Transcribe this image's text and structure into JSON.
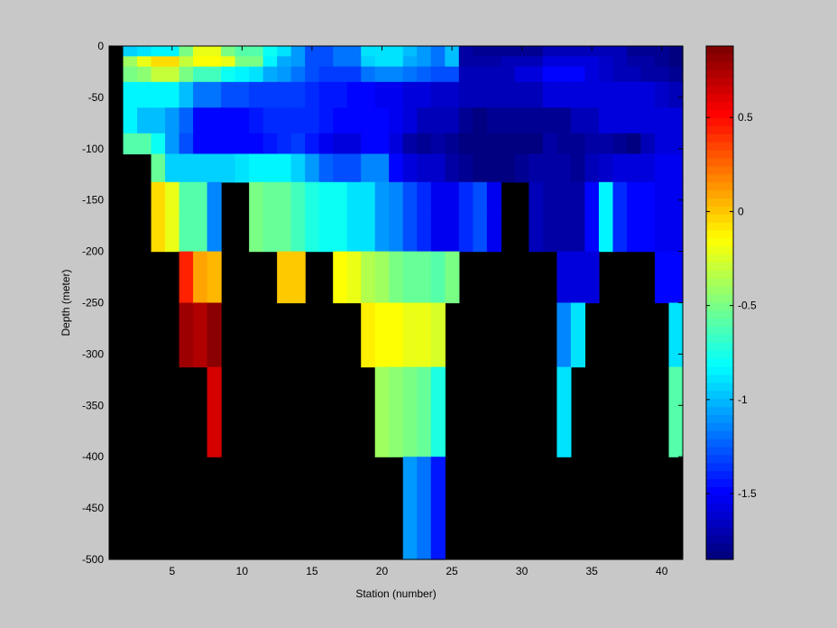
{
  "chart_data": {
    "type": "heatmap",
    "xlabel": "Station (number)",
    "ylabel": "Depth (meter)",
    "xlim": [
      1.5,
      42.5
    ],
    "ylim": [
      -500,
      0
    ],
    "xticks": [
      5,
      10,
      15,
      20,
      25,
      30,
      35,
      40
    ],
    "yticks": [
      0,
      -50,
      -100,
      -150,
      -200,
      -250,
      -300,
      -350,
      -400,
      -450,
      -500
    ],
    "x_label_offset": 1,
    "colorbar": {
      "range": [
        -1.85,
        0.88
      ],
      "ticks": [
        0.5,
        0,
        -0.5,
        -1,
        -1.5
      ],
      "colormap": "jet-like"
    },
    "missing_color": "#000000",
    "stations": [
      2,
      3,
      4,
      5,
      6,
      7,
      8,
      9,
      10,
      11,
      12,
      13,
      14,
      15,
      16,
      17,
      18,
      19,
      20,
      21,
      22,
      23,
      24,
      25,
      26,
      27,
      28,
      29,
      30,
      31,
      32,
      33,
      34,
      35,
      36,
      37,
      38,
      39,
      40,
      41
    ],
    "depths": [
      -5,
      -15,
      -25,
      -45,
      -75,
      -95,
      -115,
      -150,
      -175,
      -225,
      -275,
      -350,
      -450
    ],
    "values": [
      [
        -0.95,
        -0.9,
        -0.85,
        -0.85,
        -0.5,
        -0.2,
        -0.2,
        -0.5,
        -0.6,
        -0.6,
        -0.8,
        -0.9,
        -1.1,
        -1.3,
        -1.3,
        -1.2,
        -1.2,
        -0.9,
        -0.9,
        -0.9,
        -1.0,
        -1.1,
        -1.2,
        -1.0,
        -1.75,
        -1.8,
        -1.8,
        -1.8,
        -1.8,
        -1.8,
        -1.7,
        -1.7,
        -1.7,
        -1.7,
        -1.7,
        -1.7,
        -1.8,
        -1.8,
        -1.8,
        -1.85
      ],
      [
        -0.4,
        -0.2,
        -0.05,
        -0.05,
        -0.3,
        -0.15,
        -0.15,
        -0.2,
        -0.5,
        -0.5,
        -0.85,
        -1.05,
        -1.1,
        -1.3,
        -1.3,
        -1.2,
        -1.2,
        -0.95,
        -0.9,
        -0.9,
        -1.05,
        -1.1,
        -1.2,
        -1.0,
        -1.75,
        -1.75,
        -1.75,
        -1.7,
        -1.7,
        -1.7,
        -1.6,
        -1.6,
        -1.6,
        -1.6,
        -1.65,
        -1.7,
        -1.75,
        -1.75,
        -1.8,
        -1.85
      ],
      [
        -0.5,
        -0.45,
        -0.3,
        -0.3,
        -0.5,
        -0.65,
        -0.65,
        -0.8,
        -0.85,
        -0.9,
        -1.05,
        -1.1,
        -1.2,
        -1.3,
        -1.35,
        -1.35,
        -1.35,
        -1.2,
        -1.15,
        -1.15,
        -1.2,
        -1.25,
        -1.3,
        -1.3,
        -1.7,
        -1.7,
        -1.7,
        -1.7,
        -1.6,
        -1.6,
        -1.5,
        -1.5,
        -1.5,
        -1.6,
        -1.65,
        -1.7,
        -1.7,
        -1.75,
        -1.75,
        -1.8
      ],
      [
        -0.85,
        -0.85,
        -0.85,
        -0.85,
        -1.0,
        -1.2,
        -1.2,
        -1.3,
        -1.3,
        -1.35,
        -1.35,
        -1.35,
        -1.35,
        -1.4,
        -1.45,
        -1.45,
        -1.5,
        -1.5,
        -1.55,
        -1.55,
        -1.6,
        -1.6,
        -1.65,
        -1.65,
        -1.7,
        -1.7,
        -1.7,
        -1.7,
        -1.7,
        -1.7,
        -1.6,
        -1.6,
        -1.6,
        -1.6,
        -1.6,
        -1.6,
        -1.6,
        -1.6,
        -1.65,
        -1.7
      ],
      [
        -0.85,
        -1.0,
        -1.0,
        -1.1,
        -1.25,
        -1.5,
        -1.5,
        -1.5,
        -1.5,
        -1.45,
        -1.4,
        -1.4,
        -1.4,
        -1.4,
        -1.45,
        -1.5,
        -1.5,
        -1.5,
        -1.5,
        -1.55,
        -1.6,
        -1.7,
        -1.7,
        -1.7,
        -1.8,
        -1.85,
        -1.8,
        -1.8,
        -1.8,
        -1.8,
        -1.8,
        -1.8,
        -1.7,
        -1.7,
        -1.6,
        -1.6,
        -1.6,
        -1.6,
        -1.6,
        -1.6
      ],
      [
        -0.6,
        -0.6,
        -0.8,
        -1.1,
        -1.3,
        -1.5,
        -1.5,
        -1.5,
        -1.5,
        -1.5,
        -1.45,
        -1.4,
        -1.35,
        -1.45,
        -1.55,
        -1.6,
        -1.6,
        -1.5,
        -1.5,
        -1.6,
        -1.75,
        -1.8,
        -1.75,
        -1.8,
        -1.85,
        -1.85,
        -1.85,
        -1.85,
        -1.85,
        -1.85,
        -1.75,
        -1.8,
        -1.8,
        -1.75,
        -1.75,
        -1.8,
        -1.85,
        -1.7,
        -1.6,
        -1.6
      ],
      [
        null,
        null,
        -0.55,
        -0.95,
        -0.95,
        -0.95,
        -0.95,
        -0.95,
        -0.9,
        -0.85,
        -0.85,
        -0.85,
        -0.95,
        -1.1,
        -1.25,
        -1.3,
        -1.3,
        -1.15,
        -1.15,
        -1.5,
        -1.6,
        -1.65,
        -1.65,
        -1.75,
        -1.8,
        -1.85,
        -1.85,
        -1.85,
        -1.8,
        -1.75,
        -1.75,
        -1.75,
        -1.8,
        -1.7,
        -1.65,
        -1.6,
        -1.6,
        -1.6,
        -1.55,
        -1.55
      ],
      [
        null,
        null,
        -0.05,
        -0.2,
        -0.6,
        -0.6,
        -1.15,
        null,
        null,
        -0.5,
        -0.55,
        -0.55,
        -0.65,
        -0.75,
        -0.8,
        -0.8,
        -0.9,
        -0.9,
        -1.1,
        -1.15,
        -1.3,
        -1.4,
        -1.55,
        -1.55,
        -1.4,
        -1.3,
        -1.55,
        null,
        null,
        -1.7,
        -1.75,
        -1.75,
        -1.75,
        -1.5,
        -0.85,
        -1.4,
        -1.5,
        -1.5,
        -1.55,
        -1.55
      ],
      [
        null,
        null,
        -0.05,
        -0.2,
        -0.6,
        -0.6,
        -1.15,
        null,
        null,
        -0.5,
        -0.55,
        -0.55,
        -0.65,
        -0.75,
        -0.8,
        -0.8,
        -0.9,
        -0.9,
        -1.1,
        -1.15,
        -1.3,
        -1.4,
        -1.55,
        -1.55,
        -1.4,
        -1.3,
        -1.55,
        null,
        null,
        -1.7,
        -1.75,
        -1.75,
        -1.75,
        -1.5,
        -0.85,
        -1.4,
        -1.5,
        -1.5,
        -1.55,
        -1.55
      ],
      [
        null,
        null,
        null,
        null,
        0.45,
        0.1,
        0.05,
        null,
        null,
        null,
        null,
        0.0,
        0.0,
        null,
        null,
        -0.15,
        -0.2,
        -0.35,
        -0.4,
        -0.5,
        -0.55,
        -0.55,
        -0.6,
        -0.5,
        null,
        null,
        null,
        null,
        null,
        null,
        null,
        -1.6,
        -1.6,
        -1.6,
        null,
        null,
        null,
        null,
        -1.5,
        -1.5
      ],
      [
        null,
        null,
        null,
        null,
        0.8,
        0.75,
        0.85,
        null,
        null,
        null,
        null,
        null,
        null,
        null,
        null,
        null,
        null,
        -0.1,
        -0.15,
        -0.15,
        -0.2,
        -0.2,
        -0.25,
        null,
        null,
        null,
        null,
        null,
        null,
        null,
        null,
        -1.15,
        -0.9,
        null,
        null,
        null,
        null,
        null,
        null,
        -0.9
      ],
      [
        null,
        null,
        null,
        null,
        null,
        null,
        0.65,
        null,
        null,
        null,
        null,
        null,
        null,
        null,
        null,
        null,
        null,
        null,
        -0.4,
        -0.45,
        -0.5,
        -0.55,
        -0.75,
        null,
        null,
        null,
        null,
        null,
        null,
        null,
        null,
        -0.9,
        null,
        null,
        null,
        null,
        null,
        null,
        null,
        -0.6
      ],
      [
        null,
        null,
        null,
        null,
        null,
        null,
        null,
        null,
        null,
        null,
        null,
        null,
        null,
        null,
        null,
        null,
        null,
        null,
        null,
        null,
        -1.1,
        -1.2,
        -1.45,
        null,
        null,
        null,
        null,
        null,
        null,
        null,
        null,
        null,
        null,
        null,
        null,
        null,
        null,
        null,
        null,
        null
      ]
    ]
  }
}
